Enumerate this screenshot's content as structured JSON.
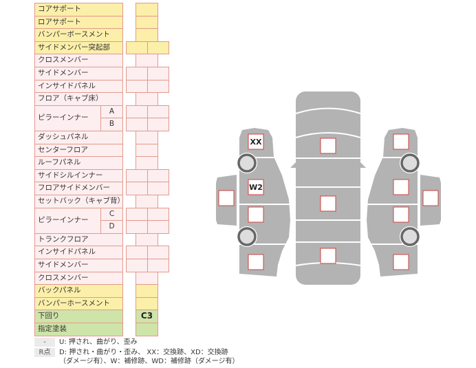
{
  "rows": [
    {
      "label": "コアサポート",
      "color": "yellow",
      "cells": "single"
    },
    {
      "label": "ロアサポート",
      "color": "yellow",
      "cells": "single"
    },
    {
      "label": "バンパーボースメント",
      "color": "yellow",
      "cells": "single"
    },
    {
      "label": "サイドメンバー突起部",
      "color": "yellow",
      "cells": "double"
    },
    {
      "label": "クロスメンバー",
      "color": "pink",
      "cells": "single"
    },
    {
      "label": "サイドメンバー",
      "color": "pink",
      "cells": "double"
    },
    {
      "label": "インサイドパネル",
      "color": "pink",
      "cells": "double"
    },
    {
      "label": "フロア（キャブ床）",
      "color": "pink",
      "cells": "single"
    },
    {
      "label": "ピラーインナー",
      "sub": "A",
      "group_start": true,
      "color": "pink",
      "cells": "double"
    },
    {
      "label": "",
      "sub": "B",
      "color": "pink",
      "cells": "double"
    },
    {
      "label": "ダッシュパネル",
      "color": "pink",
      "cells": "single"
    },
    {
      "label": "センターフロア",
      "color": "pink",
      "cells": "single"
    },
    {
      "label": "ルーフパネル",
      "color": "pink",
      "cells": "single"
    },
    {
      "label": "サイドシルインナー",
      "color": "pink",
      "cells": "double"
    },
    {
      "label": "フロアサイドメンバー",
      "color": "pink",
      "cells": "double"
    },
    {
      "label": "セットバック（キャブ背）",
      "color": "pink",
      "cells": "single"
    },
    {
      "label": "ピラーインナー",
      "sub": "C",
      "group_start": true,
      "color": "pink",
      "cells": "double"
    },
    {
      "label": "",
      "sub": "D",
      "color": "pink",
      "cells": "double"
    },
    {
      "label": "トランクフロア",
      "color": "pink",
      "cells": "single"
    },
    {
      "label": "インサイドパネル",
      "color": "pink",
      "cells": "double"
    },
    {
      "label": "サイドメンバー",
      "color": "pink",
      "cells": "double"
    },
    {
      "label": "クロスメンバー",
      "color": "pink",
      "cells": "single"
    },
    {
      "label": "バックパネル",
      "color": "yellow",
      "cells": "single"
    },
    {
      "label": "バンパーホースメント",
      "color": "yellow",
      "cells": "single"
    },
    {
      "label": "下回り",
      "color": "green",
      "cells": "single",
      "value": "C3"
    },
    {
      "label": "指定塗装",
      "color": "green",
      "cells": "single"
    }
  ],
  "diagram": {
    "marks": {
      "left_front": "XX",
      "left_door_front": "W2"
    },
    "body_color": "#b3b3b3",
    "box_border": "#d04040"
  },
  "legend": [
    {
      "key": "-",
      "text": "U: 押され、曲がり、歪み"
    },
    {
      "key": "R点",
      "text": "D: 押され・曲がり・歪み、 XX：交換跡、XD：交換跡",
      "text2": "（ダメージ有）、W：補修跡、WD：補修跡（ダメージ有）"
    }
  ]
}
